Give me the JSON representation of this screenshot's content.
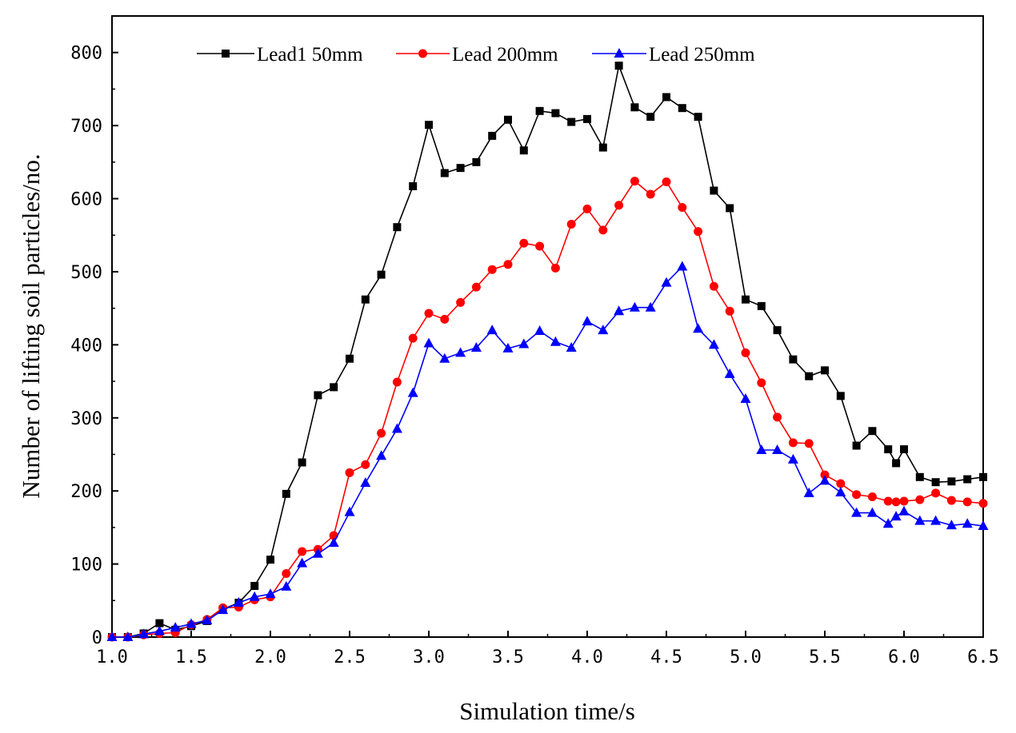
{
  "chart_data": {
    "type": "line",
    "xlabel": "Simulation time/s",
    "ylabel": "Number of lifting soil particles/no.",
    "xlim": [
      1.0,
      6.5
    ],
    "ylim": [
      0,
      850
    ],
    "xticks": [
      "1.0",
      "1.5",
      "2.0",
      "2.5",
      "3.0",
      "3.5",
      "4.0",
      "4.5",
      "5.0",
      "5.5",
      "6.0",
      "6.5"
    ],
    "yticks": [
      "0",
      "100",
      "200",
      "300",
      "400",
      "500",
      "600",
      "700",
      "800"
    ],
    "grid": false,
    "legend_position": "top-left",
    "x": [
      1.0,
      1.1,
      1.2,
      1.3,
      1.4,
      1.5,
      1.6,
      1.7,
      1.8,
      1.9,
      2.0,
      2.1,
      2.2,
      2.3,
      2.4,
      2.5,
      2.6,
      2.7,
      2.8,
      2.9,
      3.0,
      3.1,
      3.2,
      3.3,
      3.4,
      3.5,
      3.6,
      3.7,
      3.8,
      3.9,
      4.0,
      4.1,
      4.2,
      4.3,
      4.4,
      4.5,
      4.6,
      4.7,
      4.8,
      4.9,
      5.0,
      5.1,
      5.2,
      5.3,
      5.4,
      5.5,
      5.6,
      5.7,
      5.8,
      5.9,
      5.95,
      6.0,
      6.1,
      6.2,
      6.3,
      6.4,
      6.5
    ],
    "series": [
      {
        "name": "Lead1 50mm",
        "color": "#000000",
        "marker": "square",
        "values": [
          0,
          0,
          5,
          19,
          10,
          15,
          22,
          38,
          47,
          70,
          106,
          196,
          239,
          331,
          342,
          381,
          462,
          496,
          561,
          617,
          701,
          635,
          642,
          650,
          686,
          708,
          666,
          720,
          717,
          705,
          709,
          670,
          782,
          725,
          712,
          739,
          724,
          712,
          611,
          587,
          462,
          453,
          420,
          380,
          357,
          365,
          330,
          262,
          282,
          257,
          238,
          257,
          219,
          212,
          213,
          216,
          219
        ]
      },
      {
        "name": "Lead 200mm",
        "color": "#ff0000",
        "marker": "circle",
        "values": [
          0,
          0,
          3,
          5,
          6,
          17,
          24,
          40,
          41,
          51,
          55,
          87,
          117,
          120,
          139,
          225,
          236,
          279,
          349,
          409,
          443,
          435,
          458,
          479,
          503,
          510,
          539,
          535,
          505,
          565,
          586,
          557,
          591,
          624,
          606,
          623,
          588,
          555,
          480,
          446,
          389,
          348,
          301,
          266,
          265,
          222,
          210,
          195,
          192,
          186,
          185,
          186,
          188,
          197,
          187,
          185,
          183
        ]
      },
      {
        "name": "Lead 250mm",
        "color": "#0000ff",
        "marker": "triangle",
        "values": [
          0,
          0,
          4,
          8,
          13,
          18,
          23,
          37,
          47,
          55,
          59,
          69,
          101,
          114,
          129,
          171,
          211,
          248,
          285,
          334,
          402,
          381,
          389,
          396,
          420,
          395,
          401,
          419,
          404,
          396,
          432,
          420,
          446,
          451,
          451,
          485,
          507,
          422,
          400,
          360,
          326,
          256,
          256,
          243,
          197,
          214,
          198,
          170,
          170,
          155,
          165,
          172,
          159,
          159,
          153,
          155,
          152
        ]
      }
    ]
  }
}
